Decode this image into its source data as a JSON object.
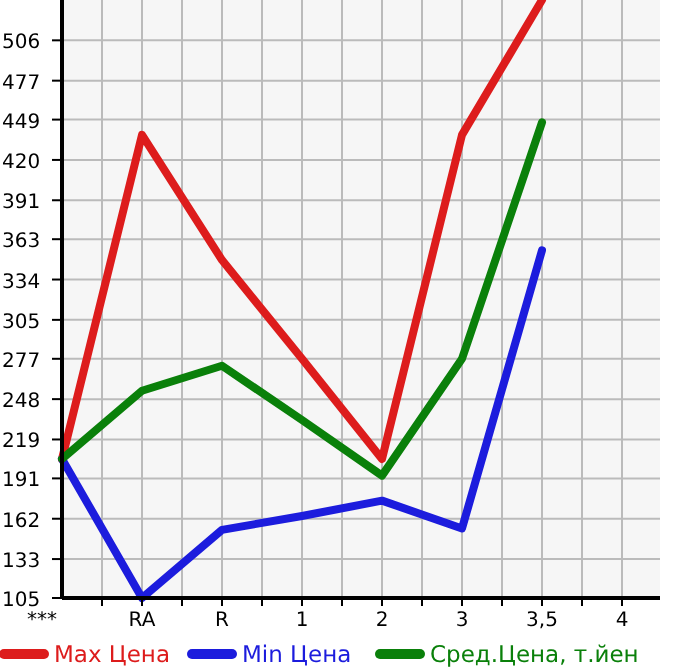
{
  "chart_data": {
    "type": "line",
    "categories": [
      "***",
      "RA",
      "R",
      "1",
      "2",
      "3",
      "3,5",
      "4"
    ],
    "series": [
      {
        "name": "Max Цена",
        "color": "#dd1c1c",
        "values": [
          205,
          438,
          348,
          277,
          205,
          438,
          535,
          null
        ]
      },
      {
        "name": "Min Цена",
        "color": "#1c1cdd",
        "values": [
          205,
          105,
          154,
          164,
          175,
          155,
          355,
          null
        ]
      },
      {
        "name": "Сред.Цена, т.йен",
        "color": "#0a800a",
        "values": [
          205,
          254,
          272,
          233,
          193,
          277,
          447,
          null
        ]
      }
    ],
    "ylim": [
      105,
      535
    ],
    "yticks": [
      105,
      133,
      162,
      191,
      219,
      248,
      277,
      305,
      334,
      363,
      391,
      420,
      449,
      477,
      506
    ],
    "grid": true,
    "legend": "bottom",
    "marker": "none",
    "line_style": "solid"
  }
}
